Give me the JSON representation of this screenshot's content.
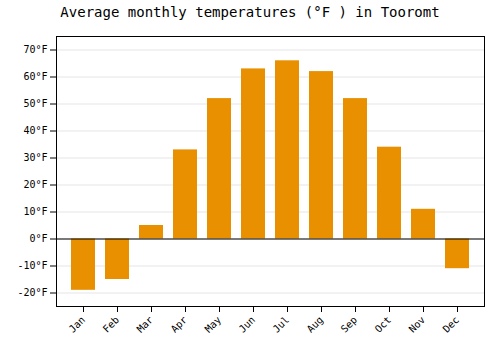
{
  "chart_data": {
    "type": "bar",
    "title": "Average monthly temperatures (°F ) in Tooromt",
    "categories": [
      "Jan",
      "Feb",
      "Mar",
      "Apr",
      "May",
      "Jun",
      "Jul",
      "Aug",
      "Sep",
      "Oct",
      "Nov",
      "Dec"
    ],
    "values": [
      -19,
      -15,
      5,
      33,
      52,
      63,
      66,
      62,
      52,
      34,
      11,
      -11
    ],
    "color": "#E89000",
    "ylim": [
      -25,
      75
    ],
    "yticks": [
      {
        "value": -20,
        "label": "-20°F"
      },
      {
        "value": -10,
        "label": "-10°F"
      },
      {
        "value": 0,
        "label": "0°F"
      },
      {
        "value": 10,
        "label": "10°F"
      },
      {
        "value": 20,
        "label": "20°F"
      },
      {
        "value": 30,
        "label": "30°F"
      },
      {
        "value": 40,
        "label": "40°F"
      },
      {
        "value": 50,
        "label": "50°F"
      },
      {
        "value": 60,
        "label": "60°F"
      },
      {
        "value": 70,
        "label": "70°F"
      }
    ],
    "grid": true
  }
}
